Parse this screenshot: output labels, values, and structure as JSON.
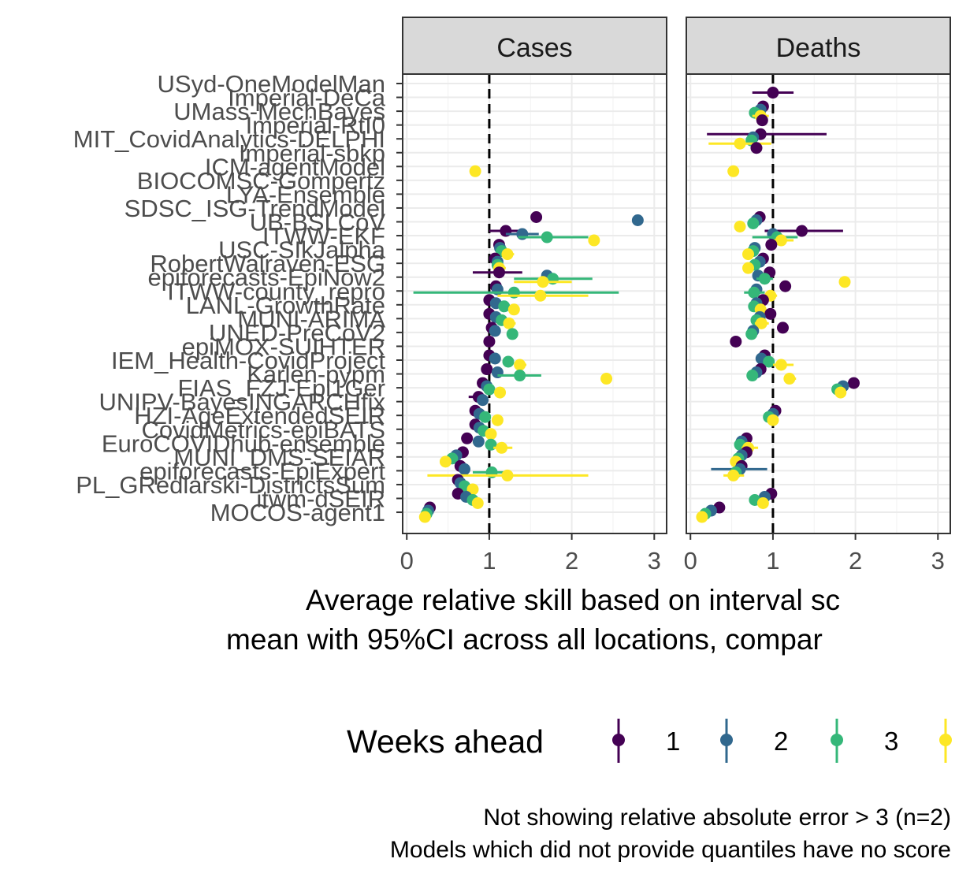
{
  "chart_data": {
    "type": "dot-interval",
    "facets": [
      "Cases",
      "Deaths"
    ],
    "models": [
      "USyd-OneModelMan",
      "Imperial-DeCa",
      "UMass-MechBayes",
      "Imperial-RtI0",
      "MIT_CovidAnalytics-DELPHI",
      "Imperial-sbkp",
      "ICM-agentModel",
      "BIOCOMSC-Gompertz",
      "LYA-Ensemble",
      "SDSC_ISG-TrendModel",
      "UB-BSLCoV",
      "ITWW-EKF",
      "USC-SIkJalpha",
      "RobertWalraven-ESG",
      "epiforecasts-EpiNow2",
      "ITWW-county_repro",
      "LANL-GrowthRate",
      "MUNI-ARIMA",
      "UNED-PreCoV2",
      "epiMOX-SUIHTER",
      "IEM_Health-CovidProject",
      "Karlen-pypm",
      "FIAS_FZJ-Epi1Ger",
      "UNIPV-BayesINGARCHfix",
      "HZI-AgeExtendedSEIR",
      "CovidMetrics-epiBATS",
      "EuroCOVIDhub-ensemble",
      "MUNI_DMS-SEIAR",
      "epiforecasts-EpiExpert",
      "PL_GRedlarski-DistrictsSum",
      "itwm-dSEIR",
      "MOCOS-agent1"
    ],
    "x_ticks": [
      0,
      1,
      2,
      3
    ],
    "xlim": [
      -0.05,
      3.15
    ],
    "reference_line": 1,
    "xlabel": "Average relative skill based on interval sc\nmean with 95%CI across all locations, compar",
    "legend_title": "Weeks ahead",
    "legend_items": [
      "1",
      "2",
      "3",
      ""
    ],
    "horizon_colors": [
      "#440154",
      "#31688e",
      "#35b779",
      "#fde725"
    ],
    "caption": [
      "Not showing relative absolute error > 3 (n=2)",
      "Models which did not provide quantiles have no score"
    ],
    "cases": [
      {
        "model": "ICM-agentModel",
        "h": 4,
        "mean": 0.83
      },
      {
        "model": "UB-BSLCoV",
        "h": 1,
        "mean": 1.57
      },
      {
        "model": "UB-BSLCoV",
        "h": 2,
        "mean": 2.8
      },
      {
        "model": "ITWW-EKF",
        "h": 1,
        "mean": 1.2,
        "lo": 1.0,
        "hi": 1.4
      },
      {
        "model": "ITWW-EKF",
        "h": 2,
        "mean": 1.4,
        "lo": 1.2,
        "hi": 1.6
      },
      {
        "model": "ITWW-EKF",
        "h": 3,
        "mean": 1.7,
        "lo": 1.35,
        "hi": 2.2
      },
      {
        "model": "ITWW-EKF",
        "h": 4,
        "mean": 2.27
      },
      {
        "model": "USC-SIkJalpha",
        "h": 1,
        "mean": 1.12
      },
      {
        "model": "USC-SIkJalpha",
        "h": 2,
        "mean": 1.13
      },
      {
        "model": "USC-SIkJalpha",
        "h": 3,
        "mean": 1.15
      },
      {
        "model": "USC-SIkJalpha",
        "h": 4,
        "mean": 1.22,
        "lo": 1.18,
        "hi": 1.3
      },
      {
        "model": "RobertWalraven-ESG",
        "h": 1,
        "mean": 1.07
      },
      {
        "model": "RobertWalraven-ESG",
        "h": 2,
        "mean": 1.1
      },
      {
        "model": "RobertWalraven-ESG",
        "h": 3,
        "mean": 1.1
      },
      {
        "model": "RobertWalraven-ESG",
        "h": 4,
        "mean": 1.12,
        "lo": 1.05,
        "hi": 1.2
      },
      {
        "model": "epiforecasts-EpiNow2",
        "h": 1,
        "mean": 1.12,
        "lo": 0.8,
        "hi": 1.4
      },
      {
        "model": "epiforecasts-EpiNow2",
        "h": 2,
        "mean": 1.7
      },
      {
        "model": "epiforecasts-EpiNow2",
        "h": 3,
        "mean": 1.77,
        "lo": 1.3,
        "hi": 2.25
      },
      {
        "model": "epiforecasts-EpiNow2",
        "h": 4,
        "mean": 1.65,
        "lo": 1.3,
        "hi": 2.0
      },
      {
        "model": "ITWW-county_repro",
        "h": 1,
        "mean": 1.08
      },
      {
        "model": "ITWW-county_repro",
        "h": 2,
        "mean": 1.1
      },
      {
        "model": "ITWW-county_repro",
        "h": 3,
        "mean": 1.3,
        "lo": 0.08,
        "hi": 2.57
      },
      {
        "model": "ITWW-county_repro",
        "h": 4,
        "mean": 1.62,
        "lo": 1.1,
        "hi": 2.2
      },
      {
        "model": "LANL-GrowthRate",
        "h": 1,
        "mean": 1.0
      },
      {
        "model": "LANL-GrowthRate",
        "h": 2,
        "mean": 1.08
      },
      {
        "model": "LANL-GrowthRate",
        "h": 3,
        "mean": 1.18
      },
      {
        "model": "LANL-GrowthRate",
        "h": 4,
        "mean": 1.3
      },
      {
        "model": "MUNI-ARIMA",
        "h": 1,
        "mean": 1.0
      },
      {
        "model": "MUNI-ARIMA",
        "h": 2,
        "mean": 1.08
      },
      {
        "model": "MUNI-ARIMA",
        "h": 3,
        "mean": 1.15
      },
      {
        "model": "MUNI-ARIMA",
        "h": 4,
        "mean": 1.24,
        "lo": 1.18,
        "hi": 1.32
      },
      {
        "model": "UNED-PreCoV2",
        "h": 1,
        "mean": 1.03
      },
      {
        "model": "UNED-PreCoV2",
        "h": 2,
        "mean": 1.07
      },
      {
        "model": "UNED-PreCoV2",
        "h": 3,
        "mean": 1.28
      },
      {
        "model": "epiMOX-SUIHTER",
        "h": 1,
        "mean": 1.0
      },
      {
        "model": "IEM_Health-CovidProject",
        "h": 1,
        "mean": 1.0
      },
      {
        "model": "IEM_Health-CovidProject",
        "h": 2,
        "mean": 1.07
      },
      {
        "model": "IEM_Health-CovidProject",
        "h": 3,
        "mean": 1.23
      },
      {
        "model": "IEM_Health-CovidProject",
        "h": 4,
        "mean": 1.37,
        "lo": 1.3,
        "hi": 1.45
      },
      {
        "model": "Karlen-pypm",
        "h": 1,
        "mean": 0.97
      },
      {
        "model": "Karlen-pypm",
        "h": 2,
        "mean": 1.1
      },
      {
        "model": "Karlen-pypm",
        "h": 3,
        "mean": 1.37,
        "lo": 1.1,
        "hi": 1.63
      },
      {
        "model": "Karlen-pypm",
        "h": 4,
        "mean": 2.42
      },
      {
        "model": "FIAS_FZJ-Epi1Ger",
        "h": 1,
        "mean": 0.92
      },
      {
        "model": "FIAS_FZJ-Epi1Ger",
        "h": 2,
        "mean": 0.97
      },
      {
        "model": "FIAS_FZJ-Epi1Ger",
        "h": 3,
        "mean": 1.0
      },
      {
        "model": "FIAS_FZJ-Epi1Ger",
        "h": 4,
        "mean": 1.13
      },
      {
        "model": "UNIPV-BayesINGARCHfix",
        "h": 1,
        "mean": 0.87,
        "lo": 0.75,
        "hi": 0.95
      },
      {
        "model": "UNIPV-BayesINGARCHfix",
        "h": 2,
        "mean": 0.92
      },
      {
        "model": "HZI-AgeExtendedSEIR",
        "h": 1,
        "mean": 0.83
      },
      {
        "model": "HZI-AgeExtendedSEIR",
        "h": 2,
        "mean": 0.88
      },
      {
        "model": "HZI-AgeExtendedSEIR",
        "h": 3,
        "mean": 0.95
      },
      {
        "model": "HZI-AgeExtendedSEIR",
        "h": 4,
        "mean": 1.1
      },
      {
        "model": "CovidMetrics-epiBATS",
        "h": 1,
        "mean": 0.83
      },
      {
        "model": "CovidMetrics-epiBATS",
        "h": 2,
        "mean": 0.88
      },
      {
        "model": "CovidMetrics-epiBATS",
        "h": 3,
        "mean": 0.93
      },
      {
        "model": "CovidMetrics-epiBATS",
        "h": 4,
        "mean": 1.02
      },
      {
        "model": "EuroCOVIDhub-ensemble",
        "h": 1,
        "mean": 0.73
      },
      {
        "model": "EuroCOVIDhub-ensemble",
        "h": 2,
        "mean": 0.87
      },
      {
        "model": "EuroCOVIDhub-ensemble",
        "h": 3,
        "mean": 1.02
      },
      {
        "model": "EuroCOVIDhub-ensemble",
        "h": 4,
        "mean": 1.15,
        "lo": 1.05,
        "hi": 1.28
      },
      {
        "model": "MUNI_DMS-SEIAR",
        "h": 1,
        "mean": 0.68
      },
      {
        "model": "MUNI_DMS-SEIAR",
        "h": 2,
        "mean": 0.6
      },
      {
        "model": "MUNI_DMS-SEIAR",
        "h": 3,
        "mean": 0.55
      },
      {
        "model": "MUNI_DMS-SEIAR",
        "h": 4,
        "mean": 0.47
      },
      {
        "model": "epiforecasts-EpiExpert",
        "h": 1,
        "mean": 0.65,
        "lo": 0.6,
        "hi": 0.7
      },
      {
        "model": "epiforecasts-EpiExpert",
        "h": 2,
        "mean": 0.7
      },
      {
        "model": "epiforecasts-EpiExpert",
        "h": 3,
        "mean": 1.03,
        "lo": 0.8,
        "hi": 1.25
      },
      {
        "model": "epiforecasts-EpiExpert",
        "h": 4,
        "mean": 1.22,
        "lo": 0.25,
        "hi": 2.2
      },
      {
        "model": "PL_GRedlarski-DistrictsSum",
        "h": 1,
        "mean": 0.62
      },
      {
        "model": "PL_GRedlarski-DistrictsSum",
        "h": 2,
        "mean": 0.65
      },
      {
        "model": "PL_GRedlarski-DistrictsSum",
        "h": 3,
        "mean": 0.7
      },
      {
        "model": "PL_GRedlarski-DistrictsSum",
        "h": 4,
        "mean": 0.8
      },
      {
        "model": "itwm-dSEIR",
        "h": 1,
        "mean": 0.62
      },
      {
        "model": "itwm-dSEIR",
        "h": 2,
        "mean": 0.72
      },
      {
        "model": "itwm-dSEIR",
        "h": 3,
        "mean": 0.8
      },
      {
        "model": "itwm-dSEIR",
        "h": 4,
        "mean": 0.86
      },
      {
        "model": "MOCOS-agent1",
        "h": 1,
        "mean": 0.28
      },
      {
        "model": "MOCOS-agent1",
        "h": 2,
        "mean": 0.26
      },
      {
        "model": "MOCOS-agent1",
        "h": 3,
        "mean": 0.24
      },
      {
        "model": "MOCOS-agent1",
        "h": 4,
        "mean": 0.22
      }
    ],
    "deaths": [
      {
        "model": "Imperial-DeCa",
        "h": 1,
        "mean": 1.0,
        "lo": 0.75,
        "hi": 1.25
      },
      {
        "model": "UMass-MechBayes",
        "h": 1,
        "mean": 0.88
      },
      {
        "model": "UMass-MechBayes",
        "h": 2,
        "mean": 0.85
      },
      {
        "model": "UMass-MechBayes",
        "h": 3,
        "mean": 0.78
      },
      {
        "model": "UMass-MechBayes",
        "h": 4,
        "mean": 0.85,
        "lo": 0.75,
        "hi": 0.95
      },
      {
        "model": "Imperial-RtI0",
        "h": 1,
        "mean": 0.87
      },
      {
        "model": "MIT_CovidAnalytics-DELPHI",
        "h": 1,
        "mean": 0.85,
        "lo": 0.2,
        "hi": 1.65
      },
      {
        "model": "MIT_CovidAnalytics-DELPHI",
        "h": 2,
        "mean": 0.76
      },
      {
        "model": "MIT_CovidAnalytics-DELPHI",
        "h": 3,
        "mean": 0.74
      },
      {
        "model": "MIT_CovidAnalytics-DELPHI",
        "h": 4,
        "mean": 0.6,
        "lo": 0.22,
        "hi": 0.98
      },
      {
        "model": "Imperial-sbkp",
        "h": 1,
        "mean": 0.8
      },
      {
        "model": "ICM-agentModel",
        "h": 4,
        "mean": 0.52
      },
      {
        "model": "UB-BSLCoV",
        "h": 1,
        "mean": 0.84
      },
      {
        "model": "UB-BSLCoV",
        "h": 2,
        "mean": 0.8
      },
      {
        "model": "UB-BSLCoV",
        "h": 3,
        "mean": 0.76
      },
      {
        "model": "UB-BSLCoV",
        "h": 4,
        "mean": 0.6
      },
      {
        "model": "ITWW-EKF",
        "h": 1,
        "mean": 1.35,
        "lo": 0.9,
        "hi": 1.85
      },
      {
        "model": "ITWW-EKF",
        "h": 2,
        "mean": 1.0
      },
      {
        "model": "ITWW-EKF",
        "h": 3,
        "mean": 1.05,
        "lo": 0.75,
        "hi": 1.3
      },
      {
        "model": "ITWW-EKF",
        "h": 4,
        "mean": 1.1,
        "lo": 0.95,
        "hi": 1.25
      },
      {
        "model": "USC-SIkJalpha",
        "h": 1,
        "mean": 0.98
      },
      {
        "model": "USC-SIkJalpha",
        "h": 2,
        "mean": 0.78
      },
      {
        "model": "USC-SIkJalpha",
        "h": 3,
        "mean": 0.76
      },
      {
        "model": "USC-SIkJalpha",
        "h": 4,
        "mean": 0.7
      },
      {
        "model": "RobertWalraven-ESG",
        "h": 1,
        "mean": 0.88
      },
      {
        "model": "RobertWalraven-ESG",
        "h": 2,
        "mean": 0.84
      },
      {
        "model": "RobertWalraven-ESG",
        "h": 3,
        "mean": 0.78
      },
      {
        "model": "RobertWalraven-ESG",
        "h": 4,
        "mean": 0.7
      },
      {
        "model": "epiforecasts-EpiNow2",
        "h": 1,
        "mean": 0.96
      },
      {
        "model": "epiforecasts-EpiNow2",
        "h": 2,
        "mean": 0.82
      },
      {
        "model": "epiforecasts-EpiNow2",
        "h": 3,
        "mean": 0.9,
        "lo": 0.8,
        "hi": 1.0
      },
      {
        "model": "epiforecasts-EpiNow2",
        "h": 4,
        "mean": 1.87
      },
      {
        "model": "ITWW-county_repro",
        "h": 1,
        "mean": 1.15
      },
      {
        "model": "ITWW-county_repro",
        "h": 2,
        "mean": 0.8
      },
      {
        "model": "ITWW-county_repro",
        "h": 3,
        "mean": 0.77,
        "lo": 0.65,
        "hi": 0.9
      },
      {
        "model": "ITWW-county_repro",
        "h": 4,
        "mean": 0.97,
        "lo": 0.9,
        "hi": 1.05
      },
      {
        "model": "LANL-GrowthRate",
        "h": 1,
        "mean": 0.88
      },
      {
        "model": "LANL-GrowthRate",
        "h": 2,
        "mean": 0.8
      },
      {
        "model": "LANL-GrowthRate",
        "h": 3,
        "mean": 0.77
      },
      {
        "model": "LANL-GrowthRate",
        "h": 4,
        "mean": 0.85
      },
      {
        "model": "MUNI-ARIMA",
        "h": 1,
        "mean": 0.97
      },
      {
        "model": "MUNI-ARIMA",
        "h": 2,
        "mean": 0.84
      },
      {
        "model": "MUNI-ARIMA",
        "h": 3,
        "mean": 0.8
      },
      {
        "model": "MUNI-ARIMA",
        "h": 4,
        "mean": 0.86,
        "lo": 0.78,
        "hi": 0.95
      },
      {
        "model": "UNED-PreCoV2",
        "h": 1,
        "mean": 1.12
      },
      {
        "model": "UNED-PreCoV2",
        "h": 2,
        "mean": 0.76
      },
      {
        "model": "UNED-PreCoV2",
        "h": 3,
        "mean": 0.74
      },
      {
        "model": "epiMOX-SUIHTER",
        "h": 1,
        "mean": 0.55
      },
      {
        "model": "IEM_Health-CovidProject",
        "h": 1,
        "mean": 0.9
      },
      {
        "model": "IEM_Health-CovidProject",
        "h": 2,
        "mean": 0.86
      },
      {
        "model": "IEM_Health-CovidProject",
        "h": 3,
        "mean": 0.95
      },
      {
        "model": "IEM_Health-CovidProject",
        "h": 4,
        "mean": 1.1,
        "lo": 1.0,
        "hi": 1.25
      },
      {
        "model": "Karlen-pypm",
        "h": 1,
        "mean": 0.85
      },
      {
        "model": "Karlen-pypm",
        "h": 2,
        "mean": 0.8
      },
      {
        "model": "Karlen-pypm",
        "h": 3,
        "mean": 0.75
      },
      {
        "model": "Karlen-pypm",
        "h": 4,
        "mean": 1.2,
        "lo": 1.15,
        "hi": 1.28
      },
      {
        "model": "FIAS_FZJ-Epi1Ger",
        "h": 1,
        "mean": 1.98
      },
      {
        "model": "FIAS_FZJ-Epi1Ger",
        "h": 2,
        "mean": 1.85
      },
      {
        "model": "FIAS_FZJ-Epi1Ger",
        "h": 3,
        "mean": 1.78
      },
      {
        "model": "FIAS_FZJ-Epi1Ger",
        "h": 4,
        "mean": 1.82
      },
      {
        "model": "HZI-AgeExtendedSEIR",
        "h": 1,
        "mean": 1.03
      },
      {
        "model": "HZI-AgeExtendedSEIR",
        "h": 2,
        "mean": 1.0
      },
      {
        "model": "HZI-AgeExtendedSEIR",
        "h": 3,
        "mean": 0.95
      },
      {
        "model": "HZI-AgeExtendedSEIR",
        "h": 4,
        "mean": 1.0
      },
      {
        "model": "EuroCOVIDhub-ensemble",
        "h": 1,
        "mean": 0.68
      },
      {
        "model": "EuroCOVIDhub-ensemble",
        "h": 2,
        "mean": 0.62
      },
      {
        "model": "EuroCOVIDhub-ensemble",
        "h": 3,
        "mean": 0.6
      },
      {
        "model": "EuroCOVIDhub-ensemble",
        "h": 4,
        "mean": 0.7,
        "lo": 0.62,
        "hi": 0.82
      },
      {
        "model": "MUNI_DMS-SEIAR",
        "h": 1,
        "mean": 0.68
      },
      {
        "model": "MUNI_DMS-SEIAR",
        "h": 2,
        "mean": 0.62
      },
      {
        "model": "MUNI_DMS-SEIAR",
        "h": 3,
        "mean": 0.58
      },
      {
        "model": "MUNI_DMS-SEIAR",
        "h": 4,
        "mean": 0.55
      },
      {
        "model": "epiforecasts-EpiExpert",
        "h": 1,
        "mean": 0.62
      },
      {
        "model": "epiforecasts-EpiExpert",
        "h": 2,
        "mean": 0.6,
        "lo": 0.25,
        "hi": 0.93
      },
      {
        "model": "epiforecasts-EpiExpert",
        "h": 3,
        "mean": 0.55
      },
      {
        "model": "epiforecasts-EpiExpert",
        "h": 4,
        "mean": 0.52,
        "lo": 0.4,
        "hi": 0.65
      },
      {
        "model": "itwm-dSEIR",
        "h": 1,
        "mean": 0.98
      },
      {
        "model": "itwm-dSEIR",
        "h": 2,
        "mean": 0.9
      },
      {
        "model": "itwm-dSEIR",
        "h": 3,
        "mean": 0.78
      },
      {
        "model": "itwm-dSEIR",
        "h": 4,
        "mean": 0.88
      },
      {
        "model": "MOCOS-agent1",
        "h": 1,
        "mean": 0.35
      },
      {
        "model": "MOCOS-agent1",
        "h": 2,
        "mean": 0.25
      },
      {
        "model": "MOCOS-agent1",
        "h": 3,
        "mean": 0.18
      },
      {
        "model": "MOCOS-agent1",
        "h": 4,
        "mean": 0.14
      }
    ]
  }
}
